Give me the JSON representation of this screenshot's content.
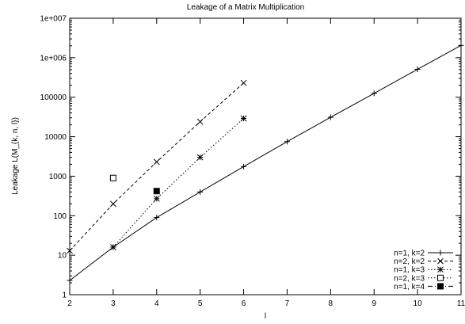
{
  "chart_data": {
    "type": "line",
    "title": "Leakage of a Matrix Multiplication",
    "xlabel": "l",
    "ylabel": "Leakage L(M_{k, n, l})",
    "xlim": [
      2,
      11
    ],
    "ylim": [
      1,
      10000000
    ],
    "yscale": "log",
    "x_ticks": [
      "2",
      "3",
      "4",
      "5",
      "6",
      "7",
      "8",
      "9",
      "10",
      "11"
    ],
    "y_ticks": [
      "1",
      "10",
      "100",
      "1000",
      "10000",
      "100000",
      "1e+006",
      "1e+007"
    ],
    "grid": false,
    "legend_position": "bottom-right",
    "series": [
      {
        "name": "n=1, k=2",
        "marker": "plus",
        "line": "solid",
        "points": [
          [
            2,
            2.3
          ],
          [
            3,
            16
          ],
          [
            4,
            90
          ],
          [
            5,
            400
          ],
          [
            6,
            1750
          ],
          [
            7,
            7500
          ],
          [
            8,
            31000
          ],
          [
            9,
            125000
          ],
          [
            10,
            510000
          ],
          [
            11,
            2050000
          ]
        ]
      },
      {
        "name": "n=2, k=2",
        "marker": "cross",
        "line": "dashed",
        "points": [
          [
            2,
            13
          ],
          [
            3,
            200
          ],
          [
            4,
            2300
          ],
          [
            5,
            24000
          ],
          [
            6,
            230000
          ]
        ]
      },
      {
        "name": "n=1, k=3",
        "marker": "star",
        "line": "dotted",
        "points": [
          [
            3,
            16
          ],
          [
            4,
            270
          ],
          [
            5,
            3000
          ],
          [
            6,
            29000
          ]
        ]
      },
      {
        "name": "n=2, k=3",
        "marker": "open-square",
        "line": "dotted",
        "points": [
          [
            3,
            900
          ]
        ]
      },
      {
        "name": "n=1, k=4",
        "marker": "filled-square",
        "line": "dashdot",
        "points": [
          [
            4,
            420
          ]
        ]
      }
    ]
  }
}
